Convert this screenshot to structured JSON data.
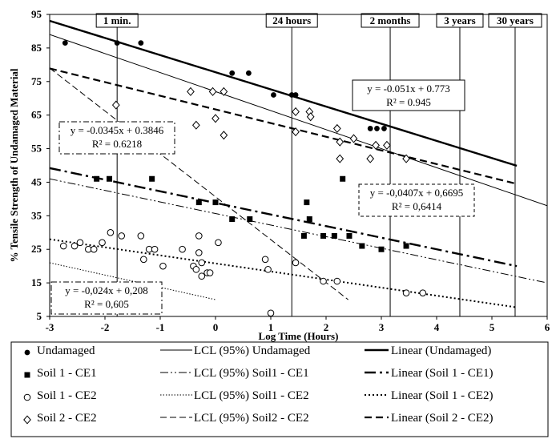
{
  "chart_data": {
    "type": "scatter",
    "xlabel": "Log Time (Hours)",
    "ylabel": "% Tensile Strength of Undamaged Material",
    "xlim": [
      -3,
      6
    ],
    "ylim": [
      5,
      95
    ],
    "x_ticks": [
      "-3",
      "-2",
      "-1",
      "0",
      "1",
      "2",
      "3",
      "4",
      "5",
      "6"
    ],
    "y_ticks": [
      "5",
      "15",
      "25",
      "35",
      "45",
      "55",
      "65",
      "75",
      "85",
      "95"
    ],
    "grid": false,
    "time_markers": [
      {
        "label": "1 min.",
        "x": -1.78
      },
      {
        "label": "24 hours",
        "x": 1.38
      },
      {
        "label": "2 months",
        "x": 3.16
      },
      {
        "label": "3 years",
        "x": 4.42
      },
      {
        "label": "30 years",
        "x": 5.42
      }
    ],
    "series": [
      {
        "name": "Undamaged",
        "marker": "filled-circle",
        "points": [
          [
            -2.72,
            86.5
          ],
          [
            -1.78,
            86.5
          ],
          [
            -1.35,
            86.5
          ],
          [
            0.3,
            77.5
          ],
          [
            0.6,
            77.5
          ],
          [
            1.05,
            71
          ],
          [
            1.38,
            71
          ],
          [
            1.45,
            71
          ],
          [
            2.8,
            61
          ],
          [
            2.92,
            61
          ],
          [
            3.05,
            61
          ]
        ]
      },
      {
        "name": "Soil 1 - CE1",
        "marker": "filled-square",
        "points": [
          [
            -2.15,
            46
          ],
          [
            -1.92,
            46
          ],
          [
            -1.15,
            46
          ],
          [
            -0.3,
            39
          ],
          [
            0,
            39
          ],
          [
            0.3,
            34
          ],
          [
            0.62,
            34
          ],
          [
            1.6,
            29
          ],
          [
            1.65,
            39
          ],
          [
            1.7,
            34
          ],
          [
            1.95,
            29
          ],
          [
            2.15,
            29
          ],
          [
            2.3,
            46
          ],
          [
            2.42,
            29
          ],
          [
            2.65,
            26
          ],
          [
            3.0,
            25
          ],
          [
            3.45,
            26
          ]
        ]
      },
      {
        "name": "Soil 1 - CE2",
        "marker": "open-circle",
        "points": [
          [
            -2.75,
            26
          ],
          [
            -2.55,
            26
          ],
          [
            -2.45,
            27
          ],
          [
            -2.3,
            25
          ],
          [
            -2.2,
            25
          ],
          [
            -2.05,
            27
          ],
          [
            -1.9,
            30
          ],
          [
            -1.7,
            29
          ],
          [
            -1.35,
            29
          ],
          [
            -1.3,
            22
          ],
          [
            -1.2,
            25
          ],
          [
            -1.1,
            25
          ],
          [
            -0.95,
            20
          ],
          [
            -0.6,
            25
          ],
          [
            -0.4,
            20
          ],
          [
            -0.35,
            19
          ],
          [
            -0.3,
            29
          ],
          [
            -0.3,
            24
          ],
          [
            -0.25,
            17
          ],
          [
            -0.25,
            21
          ],
          [
            -0.15,
            18
          ],
          [
            -0.1,
            18
          ],
          [
            0.05,
            27
          ],
          [
            0.9,
            22
          ],
          [
            0.95,
            19
          ],
          [
            1.0,
            6
          ],
          [
            1.45,
            21
          ],
          [
            1.95,
            15.5
          ],
          [
            2.2,
            15.5
          ],
          [
            3.45,
            12
          ],
          [
            3.75,
            12
          ]
        ]
      },
      {
        "name": "Soil 2 - CE2",
        "marker": "open-diamond",
        "points": [
          [
            -1.8,
            68
          ],
          [
            -0.45,
            72
          ],
          [
            -0.05,
            72
          ],
          [
            0.15,
            72
          ],
          [
            0,
            64
          ],
          [
            -0.35,
            62
          ],
          [
            0.15,
            59
          ],
          [
            1.45,
            66
          ],
          [
            1.45,
            60
          ],
          [
            1.7,
            66
          ],
          [
            1.72,
            64.5
          ],
          [
            2.2,
            61
          ],
          [
            2.25,
            57
          ],
          [
            2.25,
            52
          ],
          [
            2.5,
            58
          ],
          [
            2.8,
            52
          ],
          [
            2.9,
            56
          ],
          [
            3.1,
            56
          ],
          [
            3.45,
            52
          ]
        ]
      }
    ],
    "lines": [
      {
        "name": "LCL (95%) Undamaged",
        "style": "thin-solid",
        "x": [
          -3,
          6
        ],
        "y": [
          89,
          38
        ]
      },
      {
        "name": "LCL (95%) Soil1 - CE1",
        "style": "thin-dash-dot-dot",
        "x": [
          -3,
          6
        ],
        "y": [
          46,
          15
        ]
      },
      {
        "name": "LCL (95%) Soil1 - CE2",
        "style": "thin-dotted",
        "x": [
          -3,
          0.0
        ],
        "y": [
          21,
          10
        ]
      },
      {
        "name": "LCL (95%) Soil2 - CE2",
        "style": "thin-dashed",
        "x": [
          -3,
          2.4
        ],
        "y": [
          79,
          10
        ]
      },
      {
        "name": "Linear (Undamaged)",
        "style": "thick-solid",
        "x": [
          -3,
          5.45
        ],
        "y": [
          93.1,
          49.9
        ]
      },
      {
        "name": "Linear (Soil 1 - CE1)",
        "style": "thick-dash-dot",
        "x": [
          -3,
          5.45
        ],
        "y": [
          49.2,
          20.0
        ]
      },
      {
        "name": "Linear (Soil 1 - CE2)",
        "style": "thick-dotted",
        "x": [
          -3,
          5.45
        ],
        "y": [
          28.0,
          7.7
        ]
      },
      {
        "name": "Linear (Soil 2 - CE2)",
        "style": "thick-dashed",
        "x": [
          -3,
          5.45
        ],
        "y": [
          78.9,
          44.5
        ]
      }
    ],
    "annotations": [
      {
        "id": "undamaged",
        "style": "solid",
        "eq": "y = -0.051x + 0.773",
        "r2": "R² = 0.945"
      },
      {
        "id": "soil2",
        "style": "dash-dot",
        "eq": "y = -0.0345x + 0.3846",
        "r2": "R² = 0.6218"
      },
      {
        "id": "soil1ce1",
        "style": "dashed",
        "eq": "y = -0,0407x + 0,6695",
        "r2": "R² = 0,6414"
      },
      {
        "id": "soil1ce2",
        "style": "dash-dot",
        "eq": "y = -0,024x + 0,208",
        "r2": "R² = 0,605"
      }
    ],
    "legend": {
      "placement": "bottom",
      "entries": [
        {
          "label": "Undamaged",
          "symbol": "filled-circle"
        },
        {
          "label": "Soil 1 - CE1",
          "symbol": "filled-square"
        },
        {
          "label": "Soil 1 - CE2",
          "symbol": "open-circle"
        },
        {
          "label": "Soil 2 - CE2",
          "symbol": "open-diamond"
        },
        {
          "label": "LCL (95%) Undamaged",
          "symbol": "thin-solid"
        },
        {
          "label": "LCL (95%) Soil1 - CE1",
          "symbol": "thin-dash-dot-dot"
        },
        {
          "label": "LCL (95%) Soil1 - CE2",
          "symbol": "thin-dotted"
        },
        {
          "label": "LCL (95%) Soil2 - CE2",
          "symbol": "thin-dashed"
        },
        {
          "label": "Linear (Undamaged)",
          "symbol": "thick-solid"
        },
        {
          "label": "Linear (Soil 1 - CE1)",
          "symbol": "thick-dash-dot"
        },
        {
          "label": "Linear (Soil 1 - CE2)",
          "symbol": "thick-dotted"
        },
        {
          "label": "Linear (Soil 2 - CE2)",
          "symbol": "thick-dashed"
        }
      ]
    }
  }
}
